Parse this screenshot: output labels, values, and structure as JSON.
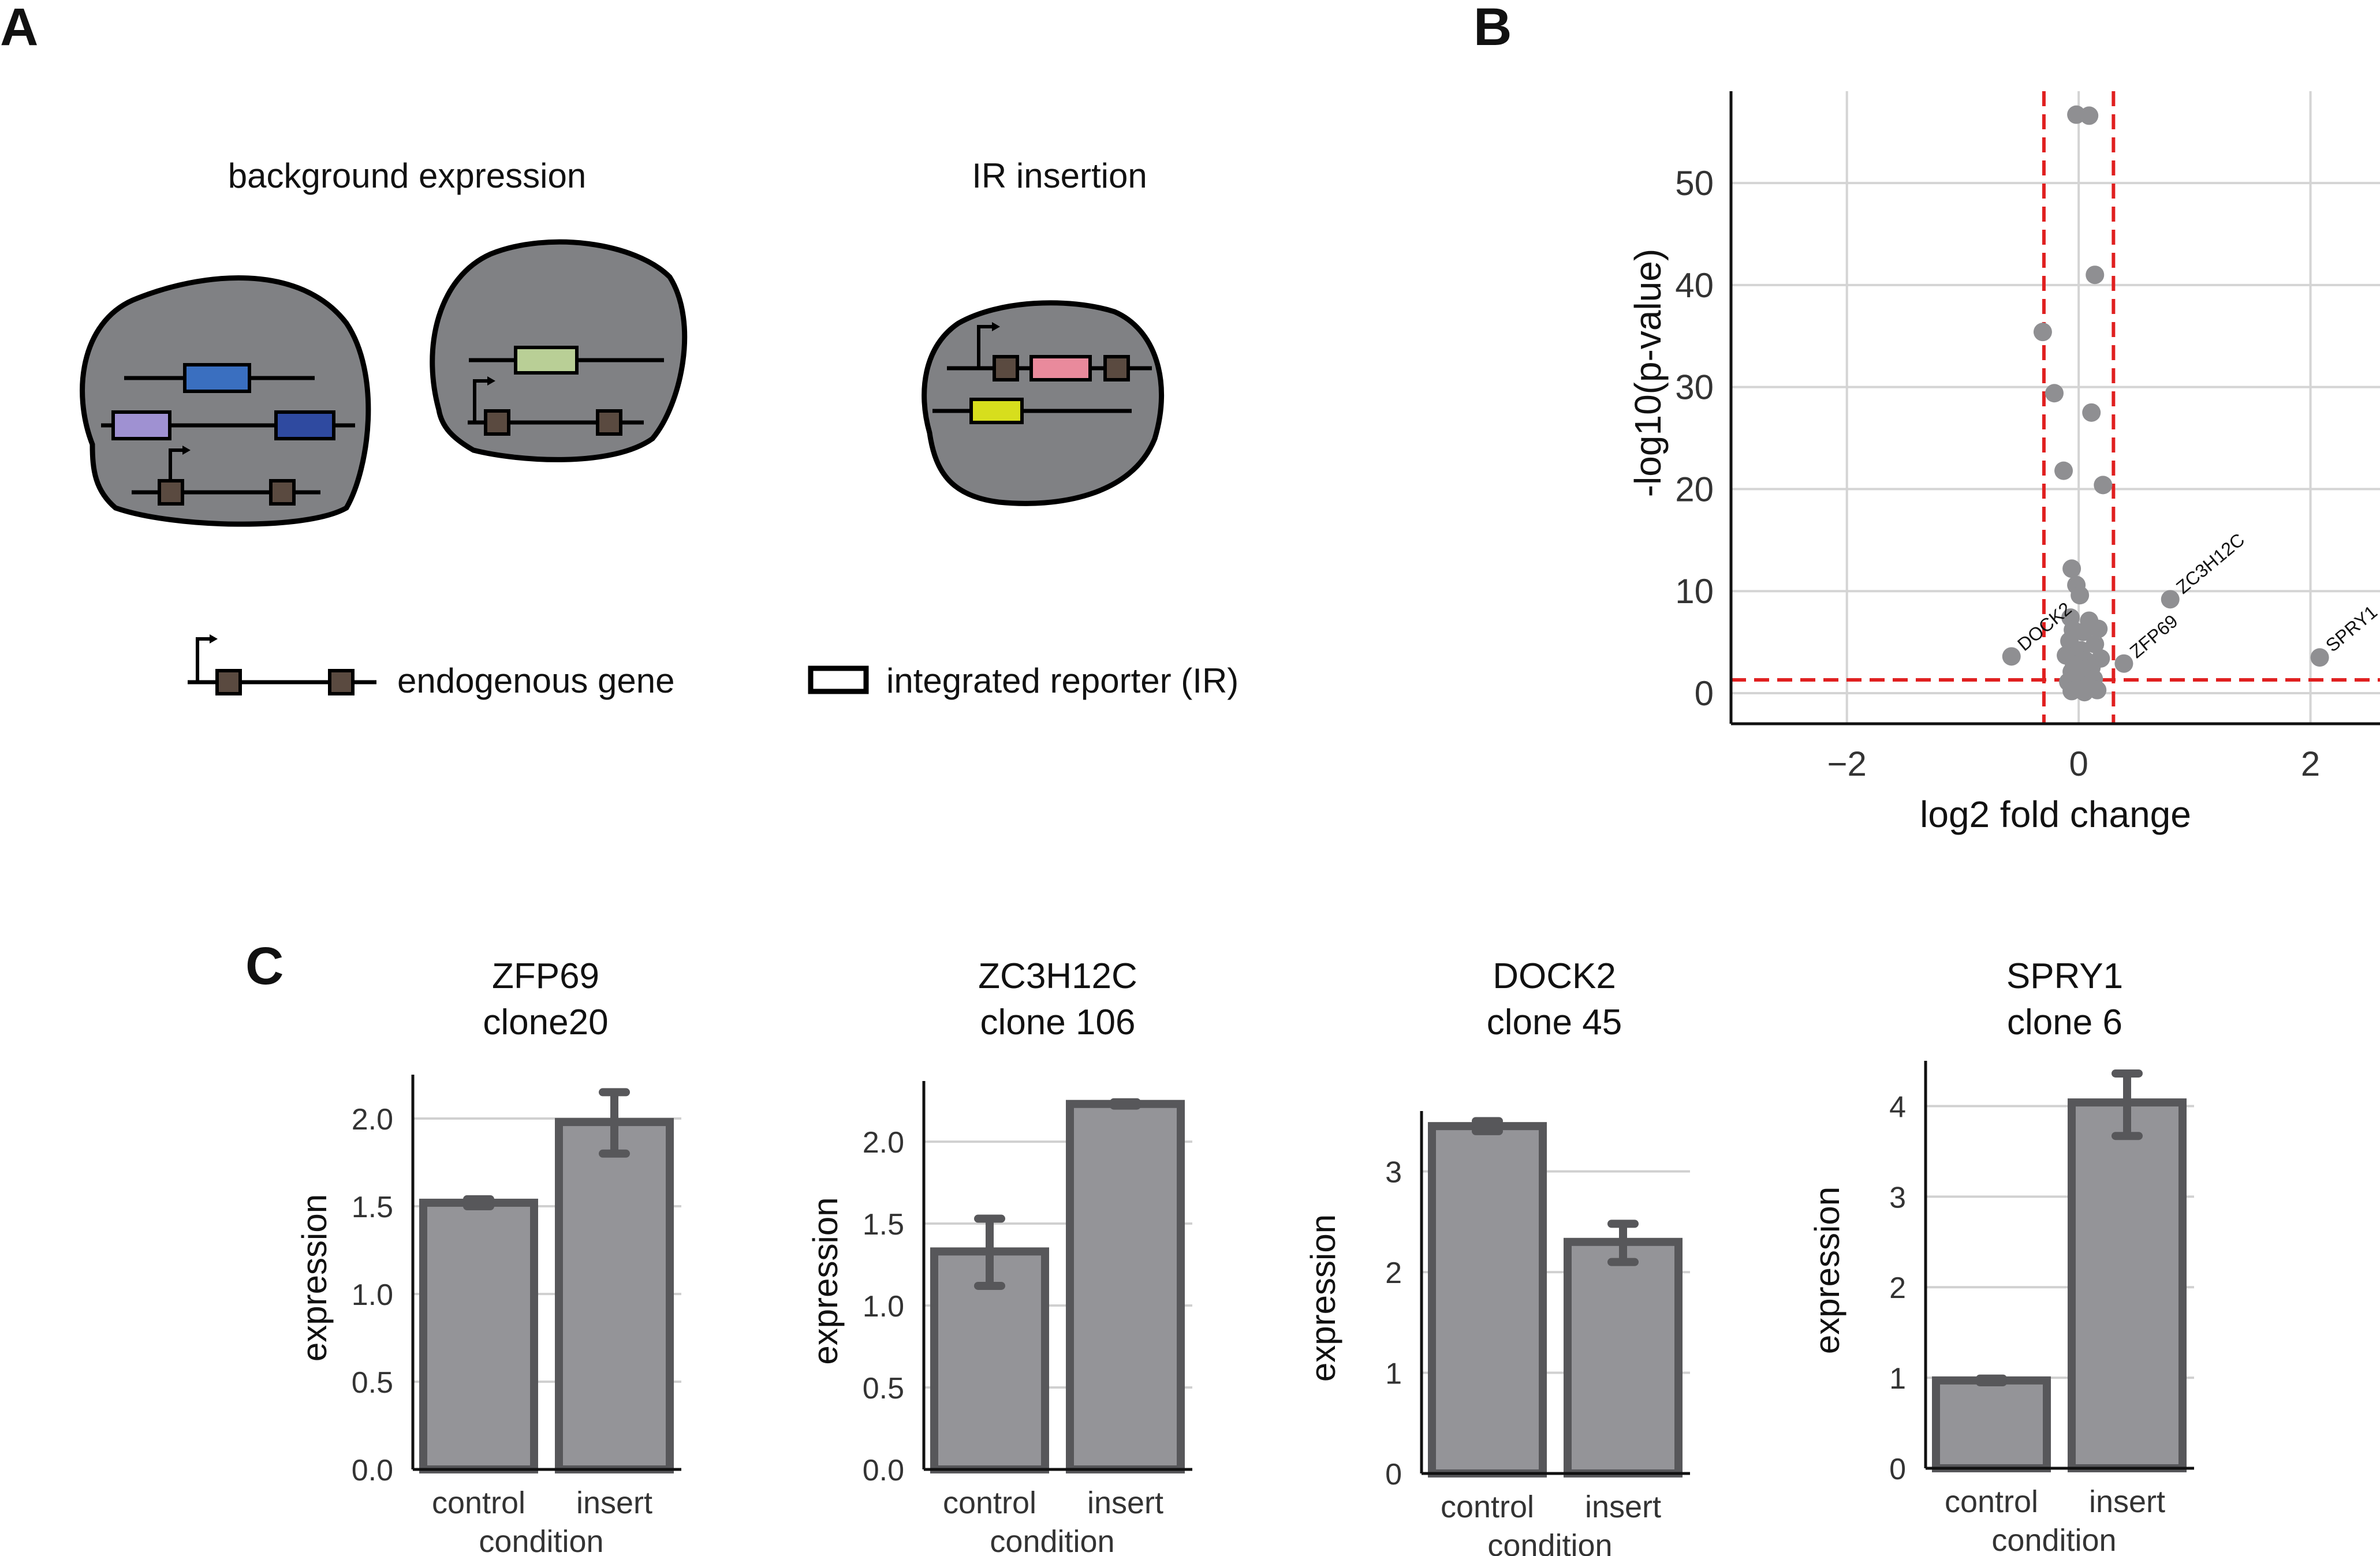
{
  "panels": {
    "a": "A",
    "b": "B",
    "c": "C"
  },
  "schematic": {
    "title_background": "background expression",
    "title_insertion": "IR insertion",
    "legend_gene": "endogenous gene",
    "legend_reporter": "integrated reporter (IR)",
    "colors": {
      "cell": "#808184",
      "exon": "#5a4a40",
      "blue": "#3a6fc0",
      "purple": "#9f91d2",
      "navy": "#2f4aa0",
      "sage": "#b9cf96",
      "pink": "#e98a9c",
      "yellow": "#d7de1d"
    }
  },
  "chart_data": [
    {
      "type": "scatter",
      "xlabel": "log2 fold change",
      "ylabel": "-log10(p-value)",
      "xlim": [
        -3,
        2.6
      ],
      "ylim": [
        -3,
        59
      ],
      "xticks": [
        -2,
        0,
        2
      ],
      "xtick_labels": [
        "−2",
        "0",
        "2"
      ],
      "yticks": [
        0,
        10,
        20,
        30,
        40,
        50
      ],
      "grid": true,
      "thresholds": {
        "x": [
          -0.3,
          0.3
        ],
        "y": 1.3,
        "color": "#e02020"
      },
      "point_color": "#8f8f92",
      "points": [
        [
          -0.02,
          56.7
        ],
        [
          0.09,
          56.6
        ],
        [
          0.14,
          41.0
        ],
        [
          -0.31,
          35.4
        ],
        [
          -0.21,
          29.4
        ],
        [
          0.11,
          27.5
        ],
        [
          -0.13,
          21.8
        ],
        [
          0.21,
          20.4
        ],
        [
          -0.06,
          12.2
        ],
        [
          -0.02,
          10.6
        ],
        [
          0.01,
          9.6
        ],
        [
          -0.07,
          7.4
        ],
        [
          0.09,
          7.1
        ],
        [
          -0.05,
          6.2
        ],
        [
          0.04,
          6.0
        ],
        [
          0.17,
          6.3
        ],
        [
          -0.08,
          5.1
        ],
        [
          0.14,
          4.8
        ],
        [
          0.02,
          4.2
        ],
        [
          -0.11,
          3.7
        ],
        [
          0.06,
          3.2
        ],
        [
          0.19,
          3.4
        ],
        [
          -0.04,
          2.8
        ],
        [
          0.11,
          2.5
        ],
        [
          -0.06,
          2.1
        ],
        [
          0.04,
          1.7
        ],
        [
          0.13,
          1.4
        ],
        [
          -0.09,
          1.1
        ],
        [
          0.01,
          0.8
        ],
        [
          0.09,
          0.6
        ],
        [
          -0.02,
          0.4
        ],
        [
          0.16,
          0.3
        ],
        [
          -0.06,
          0.2
        ],
        [
          0.05,
          0.1
        ],
        [
          -0.58,
          3.6
        ],
        [
          0.79,
          9.2
        ],
        [
          0.39,
          2.9
        ],
        [
          2.08,
          3.5
        ]
      ],
      "annotations": [
        {
          "label": "DOCK2",
          "x": -0.58,
          "y": 3.6
        },
        {
          "label": "ZC3H12C",
          "x": 0.79,
          "y": 9.2
        },
        {
          "label": "ZFP69",
          "x": 0.39,
          "y": 2.9
        },
        {
          "label": "SPRY1",
          "x": 2.08,
          "y": 3.5
        }
      ]
    },
    {
      "type": "bar",
      "title": [
        "ZFP69",
        "clone20"
      ],
      "categories": [
        "control",
        "insert"
      ],
      "values": [
        1.52,
        1.98
      ],
      "errors": [
        [
          1.5,
          1.54
        ],
        [
          1.8,
          2.15
        ]
      ],
      "xlabel": "condition",
      "ylabel": "expression",
      "ylim": [
        0,
        2.25
      ],
      "yticks": [
        0.0,
        0.5,
        1.0,
        1.5,
        2.0
      ],
      "ytick_labels": [
        "0.0",
        "0.5",
        "1.0",
        "1.5",
        "2.0"
      ]
    },
    {
      "type": "bar",
      "title": [
        "ZC3H12C",
        "clone 106"
      ],
      "categories": [
        "control",
        "insert"
      ],
      "values": [
        1.33,
        2.23
      ],
      "errors": [
        [
          1.12,
          1.53
        ],
        [
          2.22,
          2.24
        ]
      ],
      "xlabel": "condition",
      "ylabel": "expression",
      "ylim": [
        0,
        2.37
      ],
      "yticks": [
        0.0,
        0.5,
        1.0,
        1.5,
        2.0
      ],
      "ytick_labels": [
        "0.0",
        "0.5",
        "1.0",
        "1.5",
        "2.0"
      ]
    },
    {
      "type": "bar",
      "title": [
        "DOCK2",
        "clone 45"
      ],
      "categories": [
        "control",
        "insert"
      ],
      "values": [
        3.45,
        2.3
      ],
      "errors": [
        [
          3.4,
          3.5
        ],
        [
          2.1,
          2.48
        ]
      ],
      "xlabel": "condition",
      "ylabel": "expression",
      "ylim": [
        0,
        3.6
      ],
      "yticks": [
        0,
        1,
        2,
        3
      ],
      "ytick_labels": [
        "0",
        "1",
        "2",
        "3"
      ]
    },
    {
      "type": "bar",
      "title": [
        "SPRY1",
        "clone 6"
      ],
      "categories": [
        "control",
        "insert"
      ],
      "values": [
        0.97,
        4.04
      ],
      "errors": [
        [
          0.95,
          0.99
        ],
        [
          3.67,
          4.36
        ]
      ],
      "xlabel": "condition",
      "ylabel": "expression",
      "ylim": [
        0,
        4.5
      ],
      "yticks": [
        0,
        1,
        2,
        3,
        4
      ],
      "ytick_labels": [
        "0",
        "1",
        "2",
        "3",
        "4"
      ]
    }
  ]
}
